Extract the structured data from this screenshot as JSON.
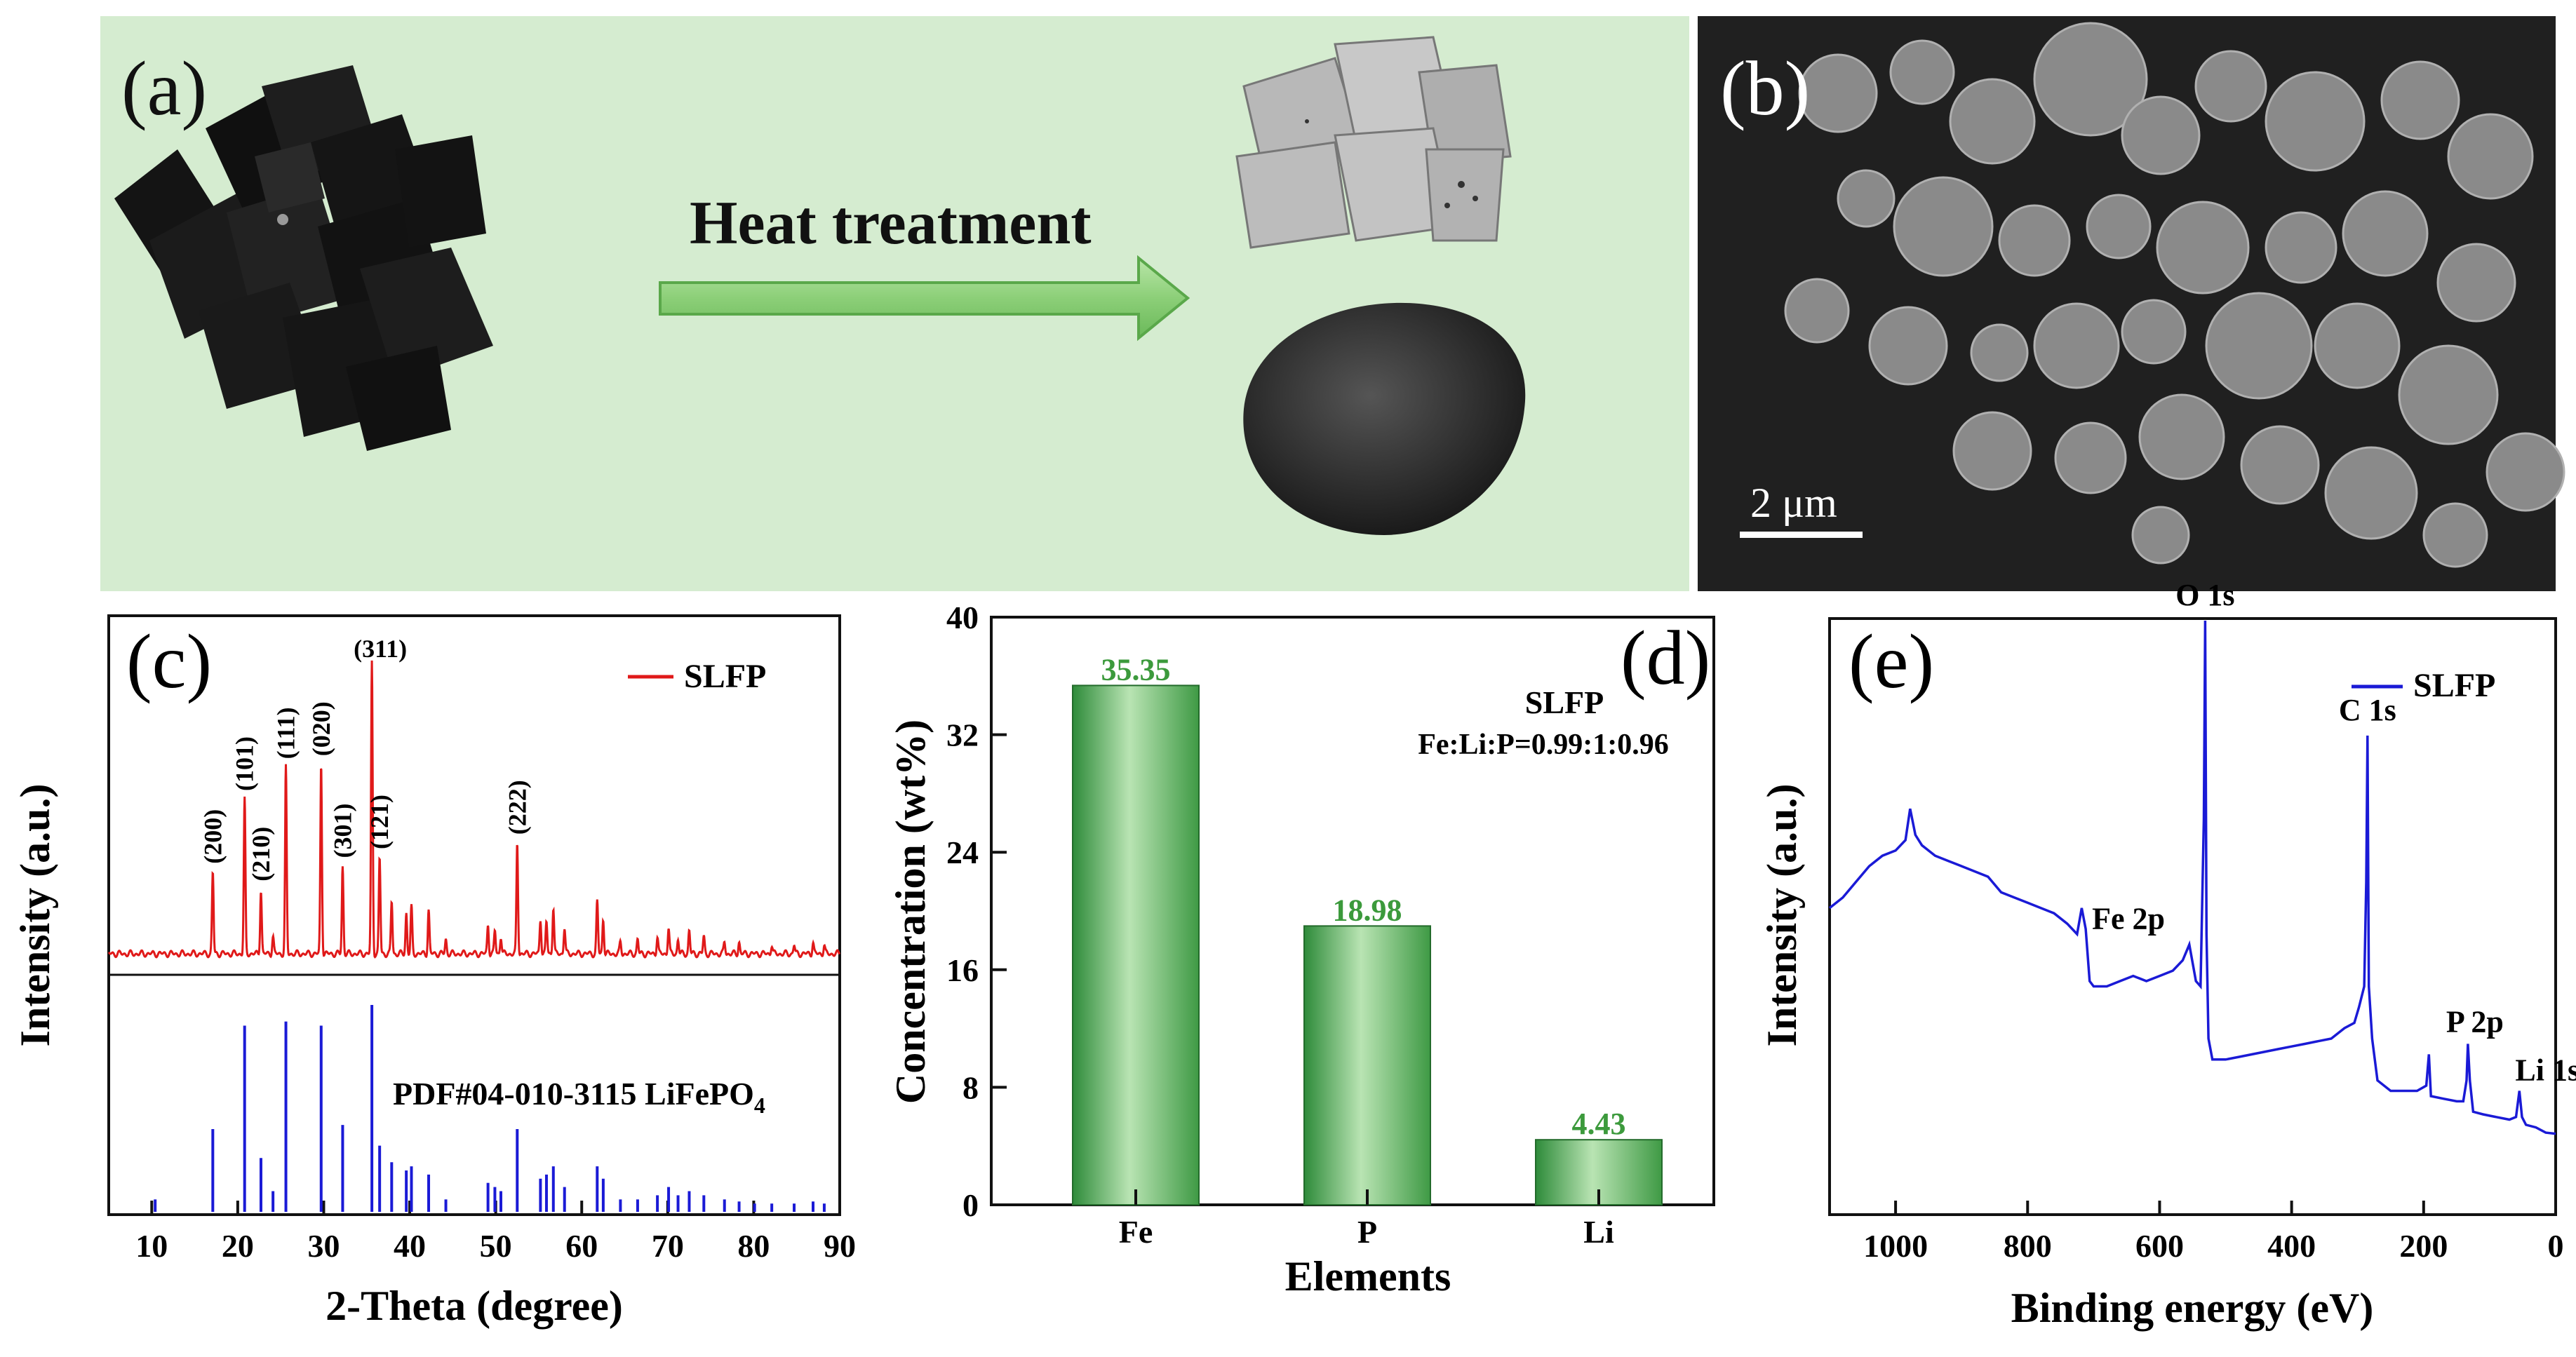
{
  "panel_a": {
    "label": "(a)",
    "arrow_text": "Heat treatment"
  },
  "panel_b": {
    "label": "(b)",
    "scale_bar": "2 μm"
  },
  "chart_data": [
    {
      "id": "c",
      "type": "line",
      "panel_label": "(c)",
      "xlabel": "2-Theta (degree)",
      "ylabel": "Intensity (a.u.)",
      "xlim": [
        5,
        90
      ],
      "xticks": [
        10,
        20,
        30,
        40,
        50,
        60,
        70,
        80,
        90
      ],
      "legend": "SLFP",
      "legend_position": "top-right",
      "reference_label": "PDF#04-010-3115 LiFePO",
      "reference_subscript": "4",
      "peaks": [
        {
          "hkl": "(200)",
          "x": 17.1,
          "y": 0.28
        },
        {
          "hkl": "(101)",
          "x": 20.8,
          "y": 0.53
        },
        {
          "hkl": "(210)",
          "x": 22.7,
          "y": 0.22
        },
        {
          "hkl": "(111)",
          "x": 25.6,
          "y": 0.64
        },
        {
          "hkl": "(020)",
          "x": 29.7,
          "y": 0.65
        },
        {
          "hkl": "(301)",
          "x": 32.2,
          "y": 0.3
        },
        {
          "hkl": "(311)",
          "x": 35.6,
          "y": 1.0
        },
        {
          "hkl": "(121)",
          "x": 36.5,
          "y": 0.33
        },
        {
          "hkl": "(222)",
          "x": 52.5,
          "y": 0.38
        }
      ],
      "minor_peaks": [
        [
          24.1,
          0.06
        ],
        [
          37.9,
          0.18
        ],
        [
          39.6,
          0.14
        ],
        [
          40.2,
          0.16
        ],
        [
          42.2,
          0.15
        ],
        [
          44.2,
          0.05
        ],
        [
          49.1,
          0.1
        ],
        [
          49.9,
          0.08
        ],
        [
          50.6,
          0.06
        ],
        [
          55.2,
          0.12
        ],
        [
          55.9,
          0.11
        ],
        [
          56.7,
          0.16
        ],
        [
          58.0,
          0.09
        ],
        [
          61.8,
          0.18
        ],
        [
          62.5,
          0.12
        ],
        [
          64.5,
          0.04
        ],
        [
          66.5,
          0.05
        ],
        [
          68.8,
          0.06
        ],
        [
          70.1,
          0.09
        ],
        [
          71.2,
          0.05
        ],
        [
          72.5,
          0.08
        ],
        [
          74.2,
          0.06
        ],
        [
          76.6,
          0.04
        ],
        [
          78.3,
          0.04
        ],
        [
          82.1,
          0.03
        ],
        [
          84.7,
          0.03
        ],
        [
          86.9,
          0.04
        ],
        [
          88.2,
          0.03
        ]
      ],
      "reference_lines": [
        [
          10.4,
          0.06
        ],
        [
          17.1,
          0.4
        ],
        [
          20.8,
          0.9
        ],
        [
          22.7,
          0.26
        ],
        [
          24.1,
          0.1
        ],
        [
          25.6,
          0.92
        ],
        [
          29.7,
          0.9
        ],
        [
          32.2,
          0.42
        ],
        [
          35.6,
          1.0
        ],
        [
          36.5,
          0.32
        ],
        [
          37.9,
          0.24
        ],
        [
          39.6,
          0.2
        ],
        [
          40.2,
          0.22
        ],
        [
          42.2,
          0.18
        ],
        [
          44.2,
          0.06
        ],
        [
          49.1,
          0.14
        ],
        [
          49.9,
          0.12
        ],
        [
          50.6,
          0.1
        ],
        [
          52.5,
          0.4
        ],
        [
          55.2,
          0.16
        ],
        [
          55.9,
          0.18
        ],
        [
          56.7,
          0.22
        ],
        [
          58.0,
          0.12
        ],
        [
          61.8,
          0.22
        ],
        [
          62.5,
          0.16
        ],
        [
          64.5,
          0.06
        ],
        [
          66.5,
          0.06
        ],
        [
          68.8,
          0.08
        ],
        [
          70.1,
          0.12
        ],
        [
          71.2,
          0.08
        ],
        [
          72.5,
          0.1
        ],
        [
          74.2,
          0.08
        ],
        [
          76.6,
          0.06
        ],
        [
          78.3,
          0.05
        ],
        [
          80.1,
          0.04
        ],
        [
          82.1,
          0.04
        ],
        [
          84.7,
          0.04
        ],
        [
          86.9,
          0.05
        ],
        [
          88.2,
          0.04
        ]
      ],
      "colors": {
        "pattern": "#e01919",
        "reference": "#1a1ad6"
      }
    },
    {
      "id": "d",
      "type": "bar",
      "panel_label": "(d)",
      "categories": [
        "Fe",
        "P",
        "Li"
      ],
      "values": [
        35.35,
        18.98,
        4.43
      ],
      "value_labels": [
        "35.35",
        "18.98",
        "4.43"
      ],
      "xlabel": "Elements",
      "ylabel": "Concentration (wt%)",
      "ylim": [
        0,
        40
      ],
      "yticks": [
        0,
        8,
        16,
        24,
        32,
        40
      ],
      "annotation_title": "SLFP",
      "annotation_ratio": "Fe:Li:P=0.99:1:0.96",
      "colors": {
        "bar_dark": "#2e8b3a",
        "bar_light": "#b9e4b3",
        "label": "#3c9a3c"
      }
    },
    {
      "id": "e",
      "type": "line",
      "panel_label": "(e)",
      "xlabel": "Binding energy (eV)",
      "ylabel": "Intensity (a.u.)",
      "xlim": [
        1100,
        0
      ],
      "xticks": [
        1000,
        800,
        600,
        400,
        200,
        0
      ],
      "legend": "SLFP",
      "legend_position": "top-right",
      "peak_labels": [
        {
          "text": "O 1s",
          "x": 531,
          "y": 1.0
        },
        {
          "text": "C 1s",
          "x": 285,
          "y": 0.78
        },
        {
          "text": "Fe 2p",
          "x": 711,
          "y": 0.37
        },
        {
          "text": "P 2p",
          "x": 133,
          "y": 0.17
        },
        {
          "text": "Li 1s",
          "x": 55,
          "y": 0.08
        }
      ],
      "spectrum": [
        [
          1100,
          0.45
        ],
        [
          1080,
          0.47
        ],
        [
          1060,
          0.5
        ],
        [
          1040,
          0.53
        ],
        [
          1020,
          0.55
        ],
        [
          1000,
          0.56
        ],
        [
          985,
          0.58
        ],
        [
          978,
          0.64
        ],
        [
          970,
          0.59
        ],
        [
          960,
          0.57
        ],
        [
          940,
          0.55
        ],
        [
          920,
          0.54
        ],
        [
          900,
          0.53
        ],
        [
          880,
          0.52
        ],
        [
          860,
          0.51
        ],
        [
          840,
          0.48
        ],
        [
          820,
          0.47
        ],
        [
          800,
          0.46
        ],
        [
          780,
          0.45
        ],
        [
          760,
          0.44
        ],
        [
          740,
          0.42
        ],
        [
          725,
          0.4
        ],
        [
          718,
          0.45
        ],
        [
          712,
          0.41
        ],
        [
          706,
          0.31
        ],
        [
          700,
          0.3
        ],
        [
          680,
          0.3
        ],
        [
          660,
          0.31
        ],
        [
          640,
          0.32
        ],
        [
          620,
          0.31
        ],
        [
          600,
          0.32
        ],
        [
          580,
          0.33
        ],
        [
          565,
          0.35
        ],
        [
          555,
          0.38
        ],
        [
          545,
          0.31
        ],
        [
          538,
          0.3
        ],
        [
          533,
          0.62
        ],
        [
          531,
          1.0
        ],
        [
          529,
          0.4
        ],
        [
          526,
          0.2
        ],
        [
          520,
          0.16
        ],
        [
          500,
          0.16
        ],
        [
          480,
          0.165
        ],
        [
          460,
          0.17
        ],
        [
          440,
          0.175
        ],
        [
          420,
          0.18
        ],
        [
          400,
          0.185
        ],
        [
          380,
          0.19
        ],
        [
          360,
          0.195
        ],
        [
          340,
          0.2
        ],
        [
          320,
          0.22
        ],
        [
          305,
          0.23
        ],
        [
          298,
          0.26
        ],
        [
          290,
          0.3
        ],
        [
          287,
          0.5
        ],
        [
          285,
          0.78
        ],
        [
          283,
          0.3
        ],
        [
          278,
          0.2
        ],
        [
          270,
          0.12
        ],
        [
          250,
          0.1
        ],
        [
          230,
          0.1
        ],
        [
          210,
          0.1
        ],
        [
          196,
          0.11
        ],
        [
          192,
          0.17
        ],
        [
          189,
          0.09
        ],
        [
          170,
          0.085
        ],
        [
          150,
          0.08
        ],
        [
          140,
          0.08
        ],
        [
          135,
          0.12
        ],
        [
          133,
          0.19
        ],
        [
          130,
          0.12
        ],
        [
          125,
          0.06
        ],
        [
          110,
          0.055
        ],
        [
          90,
          0.05
        ],
        [
          70,
          0.045
        ],
        [
          60,
          0.05
        ],
        [
          55,
          0.1
        ],
        [
          51,
          0.05
        ],
        [
          45,
          0.035
        ],
        [
          30,
          0.03
        ],
        [
          15,
          0.02
        ],
        [
          0,
          0.018
        ]
      ],
      "colors": {
        "line": "#1a1ad6"
      }
    }
  ]
}
